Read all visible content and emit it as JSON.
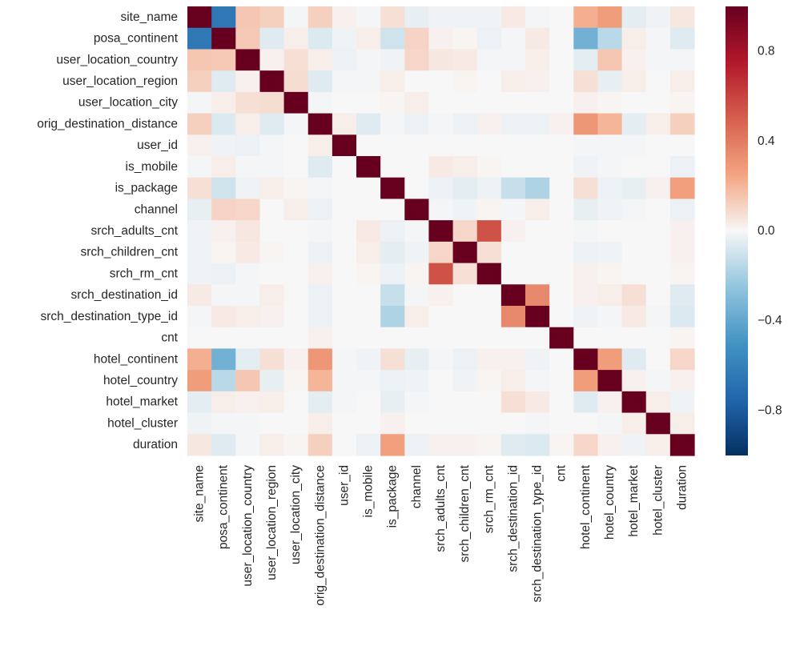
{
  "chart_data": {
    "type": "heatmap",
    "title": "",
    "xlabel": "",
    "ylabel": "",
    "labels": [
      "site_name",
      "posa_continent",
      "user_location_country",
      "user_location_region",
      "user_location_city",
      "orig_destination_distance",
      "user_id",
      "is_mobile",
      "is_package",
      "channel",
      "srch_adults_cnt",
      "srch_children_cnt",
      "srch_rm_cnt",
      "srch_destination_id",
      "srch_destination_type_id",
      "cnt",
      "hotel_continent",
      "hotel_country",
      "hotel_market",
      "hotel_cluster",
      "duration"
    ],
    "matrix": [
      [
        1.0,
        -0.65,
        0.15,
        0.12,
        -0.01,
        0.12,
        0.02,
        -0.01,
        0.07,
        -0.04,
        -0.02,
        -0.02,
        -0.02,
        0.04,
        -0.01,
        0.0,
        0.22,
        0.28,
        -0.05,
        -0.02,
        0.05
      ],
      [
        -0.65,
        1.0,
        0.14,
        -0.06,
        0.03,
        -0.07,
        -0.02,
        0.03,
        -0.1,
        0.11,
        0.02,
        0.01,
        -0.03,
        -0.01,
        0.04,
        0.0,
        -0.35,
        -0.15,
        0.03,
        -0.01,
        -0.06
      ],
      [
        0.15,
        0.14,
        1.0,
        0.02,
        0.07,
        0.03,
        -0.03,
        -0.01,
        -0.02,
        0.1,
        0.05,
        0.04,
        -0.01,
        -0.01,
        0.03,
        0.0,
        -0.05,
        0.15,
        0.02,
        -0.01,
        -0.01
      ],
      [
        0.12,
        -0.06,
        0.02,
        1.0,
        0.08,
        -0.06,
        -0.01,
        -0.01,
        0.03,
        0.0,
        0.0,
        0.01,
        0.0,
        0.03,
        0.02,
        0.0,
        0.07,
        -0.04,
        0.03,
        0.0,
        0.03
      ],
      [
        -0.01,
        0.03,
        0.07,
        0.08,
        1.0,
        -0.01,
        0.0,
        0.0,
        0.01,
        0.03,
        0.0,
        0.0,
        0.0,
        0.0,
        0.0,
        0.0,
        0.02,
        0.01,
        0.0,
        0.0,
        0.01
      ],
      [
        0.12,
        -0.07,
        0.03,
        -0.06,
        -0.01,
        1.0,
        0.03,
        -0.06,
        -0.01,
        -0.03,
        -0.01,
        -0.03,
        0.02,
        -0.03,
        -0.03,
        0.02,
        0.3,
        0.2,
        -0.05,
        0.03,
        0.12
      ],
      [
        0.02,
        -0.02,
        -0.03,
        -0.01,
        0.0,
        0.03,
        1.0,
        0.0,
        0.0,
        0.0,
        0.0,
        0.0,
        0.0,
        0.0,
        0.0,
        0.0,
        -0.01,
        -0.01,
        -0.01,
        0.0,
        0.0
      ],
      [
        -0.01,
        0.03,
        -0.01,
        -0.01,
        0.0,
        -0.06,
        0.0,
        1.0,
        0.0,
        0.0,
        0.04,
        0.03,
        0.01,
        0.0,
        0.0,
        0.0,
        -0.02,
        -0.01,
        0.0,
        0.0,
        -0.03
      ],
      [
        0.07,
        -0.1,
        -0.02,
        0.03,
        0.01,
        -0.01,
        0.0,
        0.0,
        1.0,
        0.0,
        -0.03,
        -0.05,
        -0.03,
        -0.12,
        -0.18,
        0.0,
        0.07,
        -0.03,
        -0.04,
        0.02,
        0.27
      ],
      [
        -0.04,
        0.11,
        0.1,
        0.0,
        0.03,
        -0.03,
        0.0,
        0.0,
        0.0,
        1.0,
        -0.01,
        -0.02,
        0.01,
        -0.01,
        0.03,
        0.0,
        -0.04,
        -0.02,
        -0.01,
        0.0,
        -0.03
      ],
      [
        -0.02,
        0.02,
        0.05,
        0.0,
        0.0,
        -0.01,
        0.0,
        0.04,
        -0.03,
        -0.01,
        1.0,
        0.1,
        0.55,
        0.02,
        0.0,
        0.0,
        -0.01,
        0.0,
        0.0,
        0.0,
        0.02
      ],
      [
        -0.02,
        0.01,
        0.04,
        0.01,
        0.0,
        -0.03,
        0.0,
        0.03,
        -0.05,
        -0.02,
        0.1,
        1.0,
        0.07,
        0.0,
        0.0,
        0.0,
        -0.03,
        -0.02,
        0.0,
        0.0,
        0.02
      ],
      [
        -0.02,
        -0.03,
        -0.01,
        0.0,
        0.0,
        0.02,
        0.0,
        0.01,
        -0.03,
        0.01,
        0.55,
        0.07,
        1.0,
        0.0,
        0.0,
        0.0,
        0.02,
        0.01,
        0.0,
        0.0,
        0.01
      ],
      [
        0.04,
        -0.01,
        -0.01,
        0.03,
        0.0,
        -0.03,
        0.0,
        0.0,
        -0.12,
        -0.01,
        0.02,
        0.0,
        0.0,
        1.0,
        0.35,
        0.0,
        0.02,
        0.03,
        0.07,
        0.0,
        -0.06
      ],
      [
        -0.01,
        0.04,
        0.03,
        0.02,
        0.0,
        -0.03,
        0.0,
        0.0,
        -0.18,
        0.03,
        0.0,
        0.0,
        0.0,
        0.35,
        1.0,
        0.0,
        -0.02,
        -0.01,
        0.04,
        -0.01,
        -0.07
      ],
      [
        0.0,
        0.0,
        0.0,
        0.0,
        0.0,
        0.02,
        0.0,
        0.0,
        0.0,
        0.0,
        0.0,
        0.0,
        0.0,
        0.0,
        0.0,
        1.0,
        0.0,
        0.0,
        0.0,
        0.0,
        0.01
      ],
      [
        0.22,
        -0.35,
        -0.05,
        0.07,
        0.02,
        0.3,
        -0.01,
        -0.02,
        0.07,
        -0.04,
        -0.01,
        -0.03,
        0.02,
        0.02,
        -0.02,
        0.0,
        1.0,
        0.28,
        -0.06,
        0.0,
        0.1
      ],
      [
        0.28,
        -0.15,
        0.15,
        -0.04,
        0.01,
        0.2,
        -0.01,
        -0.01,
        -0.03,
        -0.02,
        0.0,
        -0.02,
        0.01,
        0.03,
        -0.01,
        0.0,
        0.28,
        1.0,
        0.02,
        -0.01,
        0.02
      ],
      [
        -0.05,
        0.03,
        0.02,
        0.03,
        0.0,
        -0.05,
        -0.01,
        0.0,
        -0.04,
        -0.01,
        0.0,
        0.0,
        0.0,
        0.07,
        0.04,
        0.0,
        -0.06,
        0.02,
        1.0,
        0.03,
        -0.02
      ],
      [
        -0.02,
        -0.01,
        -0.01,
        0.0,
        0.0,
        0.03,
        0.0,
        0.0,
        0.02,
        0.0,
        0.0,
        0.0,
        0.0,
        0.0,
        -0.01,
        0.0,
        0.0,
        -0.01,
        0.03,
        1.0,
        0.03
      ],
      [
        0.05,
        -0.06,
        -0.01,
        0.03,
        0.01,
        0.12,
        0.0,
        -0.03,
        0.27,
        -0.03,
        0.02,
        0.02,
        0.01,
        -0.06,
        -0.07,
        0.01,
        0.1,
        0.02,
        -0.02,
        0.03,
        1.0
      ]
    ],
    "vmin": -1.0,
    "vmax": 1.0,
    "colormap": "RdBu_r",
    "colorbar_ticks": [
      0.8,
      0.4,
      0.0,
      -0.4,
      -0.8
    ],
    "colorbar_tick_labels": [
      "0.8",
      "0.4",
      "0.0",
      "−0.4",
      "−0.8"
    ],
    "grid": false,
    "colorbar_position": "right"
  }
}
